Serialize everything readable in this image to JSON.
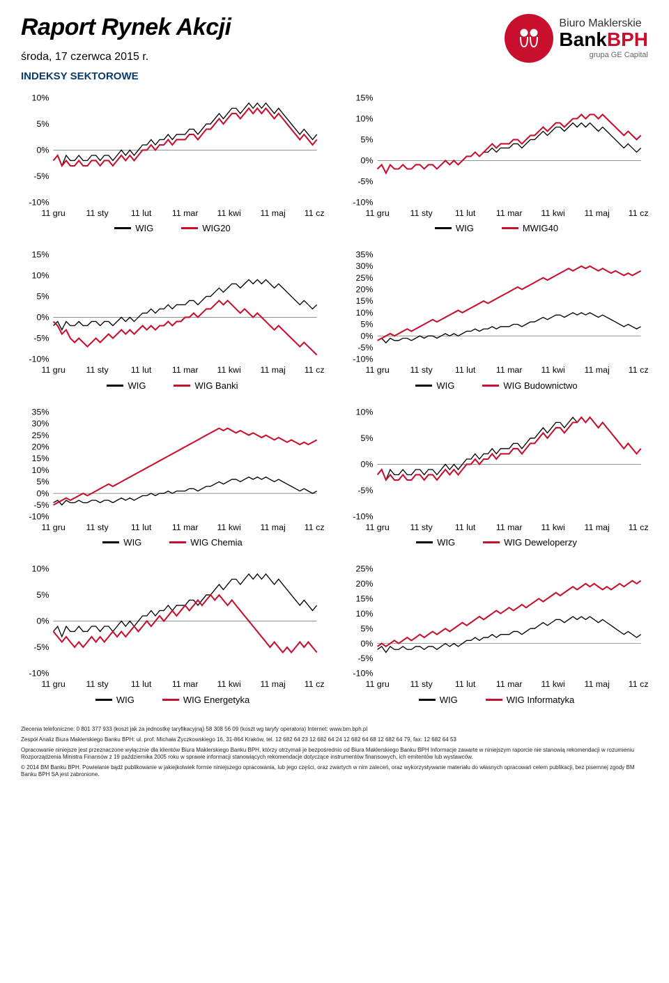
{
  "header": {
    "title": "Raport Rynek Akcji",
    "date": "środa, 17 czerwca 2015 r.",
    "logo": {
      "line1": "Biuro Maklerskie",
      "line2a": "Bank",
      "line2b": "BPH",
      "line3": "grupa GE Capital"
    }
  },
  "section_title": "INDEKSY SEKTOROWE",
  "x_labels": [
    "11 gru",
    "11 sty",
    "11 lut",
    "11 mar",
    "11 kwi",
    "11 maj",
    "11 cze"
  ],
  "colors": {
    "wig": "#000000",
    "series2": "#c8102e",
    "grid": "#808080",
    "axis": "#000000",
    "background": "#ffffff",
    "text": "#000000"
  },
  "style": {
    "line_width_wig": 1.3,
    "line_width_s2": 2.0,
    "axis_fontsize": 12,
    "legend_fontsize": 13
  },
  "charts": [
    {
      "series2_name": "WIG20",
      "ylim": [
        -10,
        10
      ],
      "ytick_step": 5,
      "wig": [
        -2,
        -1,
        -3,
        -1,
        -2,
        -2,
        -1,
        -2,
        -2,
        -1,
        -1,
        -2,
        -1,
        -1,
        -2,
        -1,
        0,
        -1,
        0,
        -1,
        0,
        1,
        1,
        2,
        1,
        2,
        2,
        3,
        2,
        3,
        3,
        3,
        4,
        4,
        3,
        4,
        5,
        5,
        6,
        7,
        6,
        7,
        8,
        8,
        7,
        8,
        9,
        8,
        9,
        8,
        9,
        8,
        7,
        8,
        7,
        6,
        5,
        4,
        3,
        4,
        3,
        2,
        3
      ],
      "s2": [
        -2,
        -1,
        -3,
        -2,
        -3,
        -3,
        -2,
        -3,
        -3,
        -2,
        -2,
        -3,
        -2,
        -2,
        -3,
        -2,
        -1,
        -2,
        -1,
        -2,
        -1,
        0,
        0,
        1,
        0,
        1,
        1,
        2,
        1,
        2,
        2,
        2,
        3,
        3,
        2,
        3,
        4,
        4,
        5,
        6,
        5,
        6,
        7,
        7,
        6,
        7,
        8,
        7,
        8,
        7,
        8,
        7,
        6,
        7,
        6,
        5,
        4,
        3,
        2,
        3,
        2,
        1,
        2
      ]
    },
    {
      "series2_name": "MWIG40",
      "ylim": [
        -10,
        15
      ],
      "ytick_step": 5,
      "wig": [
        -2,
        -1,
        -3,
        -1,
        -2,
        -2,
        -1,
        -2,
        -2,
        -1,
        -1,
        -2,
        -1,
        -1,
        -2,
        -1,
        0,
        -1,
        0,
        -1,
        0,
        1,
        1,
        2,
        1,
        2,
        2,
        3,
        2,
        3,
        3,
        3,
        4,
        4,
        3,
        4,
        5,
        5,
        6,
        7,
        6,
        7,
        8,
        8,
        7,
        8,
        9,
        8,
        9,
        8,
        9,
        8,
        7,
        8,
        7,
        6,
        5,
        4,
        3,
        4,
        3,
        2,
        3
      ],
      "s2": [
        -2,
        -1,
        -3,
        -1,
        -2,
        -2,
        -1,
        -2,
        -2,
        -1,
        -1,
        -2,
        -1,
        -1,
        -2,
        -1,
        0,
        -1,
        0,
        -1,
        0,
        1,
        1,
        2,
        1,
        2,
        3,
        4,
        3,
        4,
        4,
        4,
        5,
        5,
        4,
        5,
        6,
        6,
        7,
        8,
        7,
        8,
        9,
        9,
        8,
        9,
        10,
        10,
        11,
        10,
        11,
        11,
        10,
        11,
        10,
        9,
        8,
        7,
        6,
        7,
        6,
        5,
        6
      ]
    },
    {
      "series2_name": "WIG Banki",
      "ylim": [
        -10,
        15
      ],
      "ytick_step": 5,
      "wig": [
        -2,
        -1,
        -3,
        -1,
        -2,
        -2,
        -1,
        -2,
        -2,
        -1,
        -1,
        -2,
        -1,
        -1,
        -2,
        -1,
        0,
        -1,
        0,
        -1,
        0,
        1,
        1,
        2,
        1,
        2,
        2,
        3,
        2,
        3,
        3,
        3,
        4,
        4,
        3,
        4,
        5,
        5,
        6,
        7,
        6,
        7,
        8,
        8,
        7,
        8,
        9,
        8,
        9,
        8,
        9,
        8,
        7,
        8,
        7,
        6,
        5,
        4,
        3,
        4,
        3,
        2,
        3
      ],
      "s2": [
        -1,
        -2,
        -4,
        -3,
        -5,
        -6,
        -5,
        -6,
        -7,
        -6,
        -5,
        -6,
        -5,
        -4,
        -5,
        -4,
        -3,
        -4,
        -3,
        -4,
        -3,
        -2,
        -3,
        -2,
        -3,
        -2,
        -2,
        -1,
        -2,
        -1,
        -1,
        0,
        0,
        1,
        0,
        1,
        2,
        2,
        3,
        4,
        3,
        4,
        3,
        2,
        1,
        2,
        1,
        0,
        1,
        0,
        -1,
        -2,
        -3,
        -2,
        -3,
        -4,
        -5,
        -6,
        -7,
        -6,
        -7,
        -8,
        -9
      ]
    },
    {
      "series2_name": "WIG Budownictwo",
      "ylim": [
        -10,
        35
      ],
      "ytick_step": 5,
      "wig": [
        -2,
        -1,
        -3,
        -1,
        -2,
        -2,
        -1,
        -1,
        -2,
        -1,
        0,
        -1,
        0,
        0,
        -1,
        0,
        1,
        0,
        1,
        0,
        1,
        2,
        2,
        3,
        2,
        3,
        3,
        4,
        3,
        4,
        4,
        4,
        5,
        5,
        4,
        5,
        6,
        6,
        7,
        8,
        7,
        8,
        9,
        9,
        8,
        9,
        10,
        9,
        10,
        9,
        10,
        9,
        8,
        9,
        8,
        7,
        6,
        5,
        4,
        5,
        4,
        3,
        4
      ],
      "s2": [
        -2,
        -1,
        0,
        1,
        0,
        1,
        2,
        3,
        2,
        3,
        4,
        5,
        6,
        7,
        6,
        7,
        8,
        9,
        10,
        11,
        10,
        11,
        12,
        13,
        14,
        15,
        14,
        15,
        16,
        17,
        18,
        19,
        20,
        21,
        20,
        21,
        22,
        23,
        24,
        25,
        24,
        25,
        26,
        27,
        28,
        29,
        28,
        29,
        30,
        29,
        30,
        29,
        28,
        29,
        28,
        27,
        28,
        27,
        26,
        27,
        26,
        27,
        28
      ]
    },
    {
      "series2_name": "WIG Chemia",
      "ylim": [
        -10,
        35
      ],
      "ytick_step": 5,
      "wig": [
        -4,
        -3,
        -5,
        -3,
        -4,
        -4,
        -3,
        -4,
        -4,
        -3,
        -3,
        -4,
        -3,
        -3,
        -4,
        -3,
        -2,
        -3,
        -2,
        -3,
        -2,
        -1,
        -1,
        0,
        -1,
        0,
        0,
        1,
        0,
        1,
        1,
        1,
        2,
        2,
        1,
        2,
        3,
        3,
        4,
        5,
        4,
        5,
        6,
        6,
        5,
        6,
        7,
        6,
        7,
        6,
        7,
        6,
        5,
        6,
        5,
        4,
        3,
        2,
        1,
        2,
        1,
        0,
        1
      ],
      "s2": [
        -5,
        -4,
        -3,
        -2,
        -3,
        -2,
        -1,
        0,
        -1,
        0,
        1,
        2,
        3,
        4,
        3,
        4,
        5,
        6,
        7,
        8,
        9,
        10,
        11,
        12,
        13,
        14,
        15,
        16,
        17,
        18,
        19,
        20,
        21,
        22,
        23,
        24,
        25,
        26,
        27,
        28,
        27,
        28,
        27,
        26,
        27,
        26,
        25,
        26,
        25,
        24,
        25,
        24,
        23,
        24,
        23,
        22,
        23,
        22,
        21,
        22,
        21,
        22,
        23
      ]
    },
    {
      "series2_name": "WIG Deweloperzy",
      "ylim": [
        -10,
        10
      ],
      "ytick_step": 5,
      "wig": [
        -2,
        -1,
        -3,
        -1,
        -2,
        -2,
        -1,
        -2,
        -2,
        -1,
        -1,
        -2,
        -1,
        -1,
        -2,
        -1,
        0,
        -1,
        0,
        -1,
        0,
        1,
        1,
        2,
        1,
        2,
        2,
        3,
        2,
        3,
        3,
        3,
        4,
        4,
        3,
        4,
        5,
        5,
        6,
        7,
        6,
        7,
        8,
        8,
        7,
        8,
        9,
        8,
        9,
        8,
        9,
        8,
        7,
        8,
        7,
        6,
        5,
        4,
        3,
        4,
        3,
        2,
        3
      ],
      "s2": [
        -2,
        -1,
        -3,
        -2,
        -3,
        -3,
        -2,
        -3,
        -3,
        -2,
        -2,
        -3,
        -2,
        -2,
        -3,
        -2,
        -1,
        -2,
        -1,
        -2,
        -1,
        0,
        0,
        1,
        0,
        1,
        1,
        2,
        1,
        2,
        2,
        2,
        3,
        3,
        2,
        3,
        4,
        4,
        5,
        6,
        5,
        6,
        7,
        7,
        6,
        7,
        8,
        8,
        9,
        8,
        9,
        8,
        7,
        8,
        7,
        6,
        5,
        4,
        3,
        4,
        3,
        2,
        3
      ]
    },
    {
      "series2_name": "WIG Energetyka",
      "ylim": [
        -10,
        10
      ],
      "ytick_step": 5,
      "wig": [
        -2,
        -1,
        -3,
        -1,
        -2,
        -2,
        -1,
        -2,
        -2,
        -1,
        -1,
        -2,
        -1,
        -1,
        -2,
        -1,
        0,
        -1,
        0,
        -1,
        0,
        1,
        1,
        2,
        1,
        2,
        2,
        3,
        2,
        3,
        3,
        3,
        4,
        4,
        3,
        4,
        5,
        5,
        6,
        7,
        6,
        7,
        8,
        8,
        7,
        8,
        9,
        8,
        9,
        8,
        9,
        8,
        7,
        8,
        7,
        6,
        5,
        4,
        3,
        4,
        3,
        2,
        3
      ],
      "s2": [
        -2,
        -3,
        -4,
        -3,
        -4,
        -5,
        -4,
        -5,
        -4,
        -3,
        -4,
        -3,
        -4,
        -3,
        -2,
        -3,
        -2,
        -3,
        -2,
        -1,
        -2,
        -1,
        0,
        -1,
        0,
        1,
        0,
        1,
        2,
        1,
        2,
        3,
        2,
        3,
        4,
        3,
        4,
        5,
        4,
        5,
        4,
        3,
        4,
        3,
        2,
        1,
        0,
        -1,
        -2,
        -3,
        -4,
        -5,
        -4,
        -5,
        -6,
        -5,
        -6,
        -5,
        -4,
        -5,
        -4,
        -5,
        -6
      ]
    },
    {
      "series2_name": "WIG Informatyka",
      "ylim": [
        -10,
        25
      ],
      "ytick_step": 5,
      "wig": [
        -2,
        -1,
        -3,
        -1,
        -2,
        -2,
        -1,
        -2,
        -2,
        -1,
        -1,
        -2,
        -1,
        -1,
        -2,
        -1,
        0,
        -1,
        0,
        -1,
        0,
        1,
        1,
        2,
        1,
        2,
        2,
        3,
        2,
        3,
        3,
        3,
        4,
        4,
        3,
        4,
        5,
        5,
        6,
        7,
        6,
        7,
        8,
        8,
        7,
        8,
        9,
        8,
        9,
        8,
        9,
        8,
        7,
        8,
        7,
        6,
        5,
        4,
        3,
        4,
        3,
        2,
        3
      ],
      "s2": [
        -1,
        0,
        -1,
        0,
        1,
        0,
        1,
        2,
        1,
        2,
        3,
        2,
        3,
        4,
        3,
        4,
        5,
        4,
        5,
        6,
        7,
        6,
        7,
        8,
        9,
        8,
        9,
        10,
        11,
        10,
        11,
        12,
        11,
        12,
        13,
        12,
        13,
        14,
        15,
        14,
        15,
        16,
        17,
        16,
        17,
        18,
        19,
        18,
        19,
        20,
        19,
        20,
        19,
        18,
        19,
        18,
        19,
        20,
        19,
        20,
        21,
        20,
        21
      ]
    }
  ],
  "footer": {
    "p1": "Zlecenia telefoniczne: 0 801 377 933 (koszt jak za jednostkę taryfikacyjną) 58 308 56 09 (koszt wg taryfy operatora) Internet: www.bm.bph.pl",
    "p2": "Zespół Analiz Biura Maklerskiego Banku BPH: ul. prof. Michała Życzkowskiego 16, 31-864 Kraków, tel. 12 682 64 23 12 682 64 24 12 682 64 68 12 682 64 79, fax: 12 682 64 53",
    "p3": "Opracowanie niniejsze jest przeznaczone wyłącznie dla klientów Biura Maklerskiego Banku BPH, którzy otrzymali je bezpośrednio od Biura Maklerskiego Banku BPH Informacje zawarte w niniejszym raporcie nie stanowią rekomendacji w rozumieniu Rozporządzenia Ministra Finansów z 19 października 2005 roku w sprawie informacji stanowiących rekomendacje dotyczące instrumentów finansowych, ich emitentów lub wystawców.",
    "p4": "© 2014 BM Banku BPH. Powielanie bądź publikowanie w jakiejkolwiek formie niniejszego opracowania, lub jego części, oraz zwartych w nim zaleceń, oraz wykorzystywanie materiału do własnych opracowań celem publikacji, bez pisemnej zgody BM Banku BPH SA jest zabronione."
  }
}
